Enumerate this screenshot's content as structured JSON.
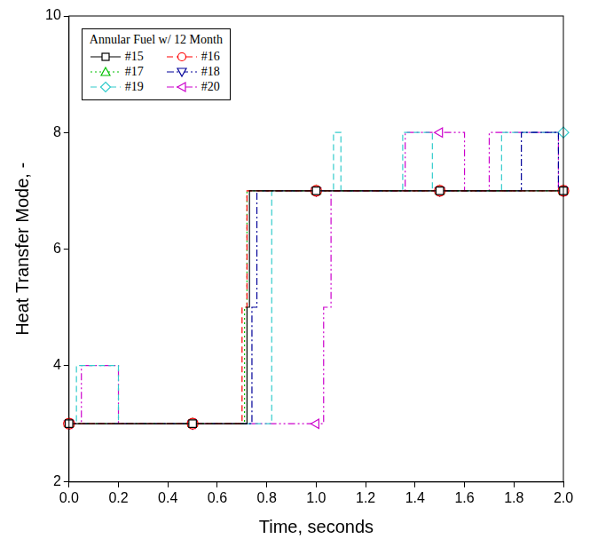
{
  "chart_data": {
    "type": "line",
    "stacked": false,
    "xlabel": "Time, seconds",
    "ylabel": "Heat Transfer Mode, -",
    "legend_title": "Annular Fuel w/ 12 Month",
    "legend": "upper left",
    "grid": false,
    "xlim": [
      0,
      2
    ],
    "xticks": [
      {
        "value": 0,
        "label": "0.0"
      },
      {
        "value": 0.2,
        "label": "0.2"
      },
      {
        "value": 0.4,
        "label": "0.4"
      },
      {
        "value": 0.6,
        "label": "0.6"
      },
      {
        "value": 0.8,
        "label": "0.8"
      },
      {
        "value": 1,
        "label": "1.0"
      },
      {
        "value": 1.2,
        "label": "1.2"
      },
      {
        "value": 1.4,
        "label": "1.4"
      },
      {
        "value": 1.6,
        "label": "1.6"
      },
      {
        "value": 1.8,
        "label": "1.8"
      },
      {
        "value": 2,
        "label": "2.0"
      }
    ],
    "ylim": [
      2,
      10
    ],
    "yticks": [
      2,
      4,
      6,
      8,
      10
    ],
    "series": [
      {
        "name": "#15",
        "color": "#000000",
        "line_style": "solid",
        "marker": "square",
        "x": [
          0,
          0.5,
          0.72,
          0.73,
          1.0,
          1.5,
          2.0
        ],
        "values": [
          3,
          3,
          5,
          7,
          7,
          7,
          7
        ]
      },
      {
        "name": "#16",
        "color": "#ff0000",
        "line_style": "dashed",
        "marker": "circle",
        "x": [
          0,
          0.5,
          0.7,
          0.72,
          1.0,
          1.5,
          2.0
        ],
        "values": [
          3,
          3,
          5,
          7,
          7,
          7,
          7
        ]
      },
      {
        "name": "#17",
        "color": "#00c000",
        "line_style": "dotted",
        "marker": "triangle",
        "x": [
          0,
          0.5,
          0.71,
          0.72,
          1.0,
          1.5,
          2.0
        ],
        "values": [
          3,
          3,
          5,
          7,
          7,
          7,
          7
        ]
      },
      {
        "name": "#18",
        "color": "#000099",
        "line_style": "dashdot",
        "marker": "triangle-down",
        "x": [
          0,
          0.5,
          0.74,
          0.76,
          1.0,
          1.5,
          1.83,
          1.98,
          2.0
        ],
        "values": [
          3,
          3,
          5,
          7,
          7,
          7,
          8,
          7,
          7
        ]
      },
      {
        "name": "#19",
        "color": "#33cccc",
        "line_style": "dashed",
        "marker": "diamond",
        "x": [
          0,
          0.03,
          0.2,
          0.5,
          0.82,
          1.0,
          1.07,
          1.1,
          1.35,
          1.47,
          1.5,
          1.75,
          2.0
        ],
        "values": [
          3,
          4,
          3,
          3,
          7,
          7,
          8,
          7,
          8,
          7,
          7,
          8,
          8
        ]
      },
      {
        "name": "#20",
        "color": "#cc00cc",
        "line_style": "dashdotdot",
        "marker": "triangle-left",
        "x": [
          0,
          0.05,
          0.2,
          0.5,
          1.0,
          1.03,
          1.06,
          1.36,
          1.5,
          1.6,
          1.7,
          1.98,
          2.0
        ],
        "values": [
          3,
          4,
          3,
          3,
          3,
          5,
          7,
          8,
          8,
          7,
          8,
          7,
          7
        ]
      }
    ]
  }
}
